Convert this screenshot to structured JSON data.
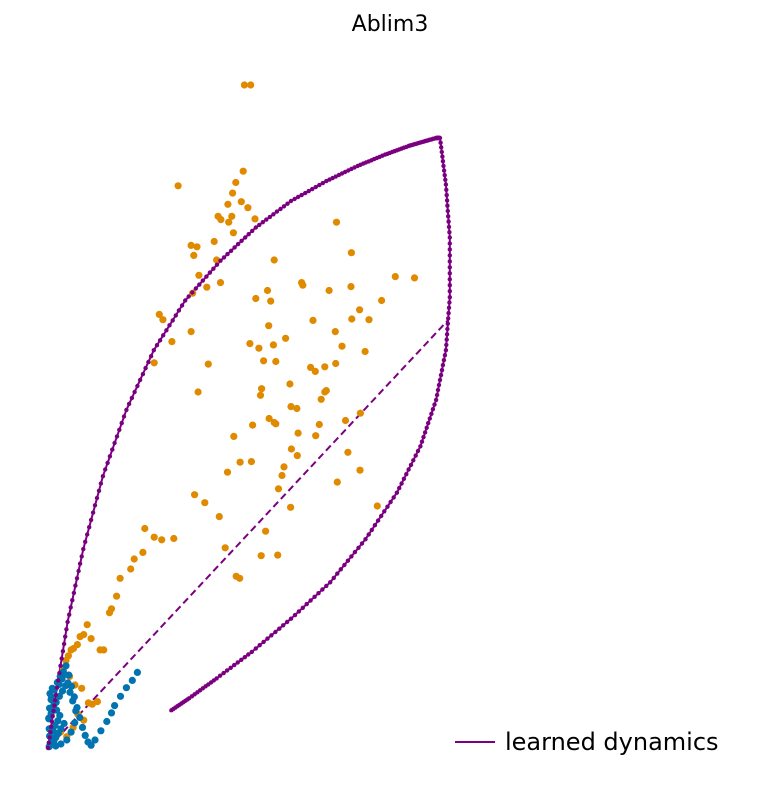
{
  "chart_data": {
    "type": "scatter",
    "title": "Ablim3",
    "xlabel": "",
    "ylabel": "",
    "axes_visible": false,
    "grid": false,
    "legend_position": "bottom-right",
    "xlim": [
      0,
      100
    ],
    "ylim": [
      0,
      100
    ],
    "colors": {
      "induction_cells": "#e08a00",
      "steady_cells": "#0073b0",
      "dynamics": "#7b0080"
    },
    "series": [
      {
        "points_x": [
          50.1,
          51.7,
          33.2,
          46.1,
          45.9,
          47.9,
          47.1,
          49.8,
          43.4,
          51.0,
          49.3,
          44.1,
          36.5,
          38.0,
          42.4,
          46.9,
          47.3,
          52.8,
          57.7,
          73.6,
          77.4,
          88.6,
          80.9,
          85.1,
          70.6,
          57.5,
          67.0,
          44.0,
          40.5,
          29.3,
          28.4,
          38.5,
          43.0,
          37.2,
          36.9,
          51.5,
          64.7,
          71.7,
          93.5,
          77.3,
          79.5,
          75.0,
          73.3,
          67.6,
          65.0,
          56.8,
          60.6,
          58.1,
          56.3,
          54.5,
          36.5,
          31.6,
          27.1,
          40.9,
          38.3,
          57.7,
          62.0,
          58.1,
          49.0,
          45.8,
          51.9,
          63.6,
          68.3,
          73.8,
          79.6,
          84.0,
          76.5,
          75.9,
          69.7,
          69.2,
          63.5,
          68.2,
          71.0,
          73.4,
          79.7,
          54.2,
          56.4,
          55.0,
          53.8,
          56.0,
          53.0,
          61.7,
          60.2,
          58.8,
          63.8,
          81.9,
          70.6,
          77.5,
          43.7,
          40.0,
          45.2,
          55.5,
          61.9,
          59.7,
          62.1,
          58.6,
          54.4,
          52.2,
          47.4,
          48.0,
          48.9,
          37.4,
          32.1,
          29.0,
          27.1,
          24.7,
          24.2,
          22.0,
          21.1,
          18.4,
          17.5,
          16.2,
          15.7,
          14.2,
          13.3,
          11.0,
          10.0,
          9.1,
          8.2,
          7.5,
          6.5,
          5.9,
          5.2,
          4.6,
          3.9,
          5.5,
          6.9,
          8.6,
          10.3,
          12.6,
          9.1,
          7.6,
          6.4,
          11.3,
          4.8,
          3.2
        ],
        "points_y": [
          100.0,
          100.0,
          84.8,
          79.3,
          82.0,
          85.3,
          83.7,
          87.0,
          80.2,
          81.5,
          82.4,
          79.7,
          75.8,
          75.6,
          76.4,
          80.2,
          77.7,
          79.8,
          73.6,
          79.3,
          74.7,
          71.1,
          59.8,
          67.5,
          57.5,
          60.8,
          57.4,
          70.2,
          69.5,
          64.6,
          65.4,
          71.3,
          73.6,
          74.3,
          68.6,
          61.0,
          70.2,
          69.0,
          70.9,
          69.6,
          66.1,
          60.6,
          62.8,
          64.5,
          69.8,
          67.4,
          61.8,
          58.3,
          63.7,
          54.2,
          62.8,
          61.3,
          58.1,
          57.9,
          53.7,
          49.1,
          51.5,
          48.9,
          43.1,
          41.6,
          43.2,
          44.1,
          47.1,
          40.1,
          41.9,
          36.5,
          44.6,
          49.4,
          52.6,
          48.8,
          51.2,
          56.8,
          53.9,
          58.0,
          50.5,
          53.2,
          49.7,
          58.4,
          60.3,
          69.0,
          67.8,
          54.9,
          42.4,
          39.1,
          47.5,
          64.6,
          53.7,
          64.7,
          34.9,
          37.0,
          30.2,
          32.7,
          36.3,
          41.1,
          45.1,
          29.1,
          29.0,
          48.7,
          47.0,
          25.9,
          25.6,
          38.2,
          31.6,
          31.4,
          31.8,
          33.1,
          29.5,
          28.5,
          27.0,
          25.6,
          22.9,
          21.0,
          20.4,
          14.8,
          14.8,
          16.5,
          18.6,
          17.1,
          16.8,
          15.6,
          15.0,
          14.8,
          13.9,
          13.2,
          11.8,
          10.8,
          9.5,
          9.0,
          6.8,
          7.0,
          4.2,
          5.1,
          3.1,
          6.6,
          1.7,
          2.4
        ]
      },
      {
        "points_x": [
          0.3,
          0.6,
          1.0,
          0.4,
          1.3,
          1.8,
          2.5,
          3.0,
          2.2,
          1.5,
          0.8,
          0.5,
          1.1,
          2.8,
          3.6,
          4.2,
          5.1,
          5.6,
          6.3,
          7.1,
          6.8,
          5.9,
          4.8,
          3.3,
          2.0,
          1.2,
          0.7,
          0.3,
          0.2,
          0.4,
          0.9,
          1.6,
          2.4,
          3.1,
          3.9,
          4.6,
          5.3,
          6.0,
          6.7,
          7.4,
          8.1,
          8.8,
          9.5,
          10.2,
          11.0,
          12.0,
          13.5,
          15.0,
          16.2,
          17.0,
          18.5,
          20.0,
          21.5,
          22.8,
          0.5,
          1.0,
          1.5,
          2.0,
          2.6,
          3.3,
          4.1,
          0.2,
          0.8,
          1.4,
          2.1,
          2.9,
          3.7,
          4.5
        ],
        "points_y": [
          0.2,
          0.5,
          1.0,
          1.8,
          2.6,
          3.4,
          4.1,
          4.9,
          5.7,
          6.5,
          7.3,
          8.2,
          9.0,
          9.6,
          10.4,
          11.1,
          9.8,
          8.4,
          7.1,
          5.6,
          3.8,
          2.4,
          1.2,
          0.6,
          0.3,
          0.9,
          1.7,
          2.9,
          4.5,
          6.0,
          7.6,
          8.8,
          9.9,
          10.8,
          11.5,
          12.4,
          11.0,
          9.3,
          7.7,
          6.1,
          4.6,
          3.1,
          1.9,
          0.9,
          0.4,
          1.2,
          2.6,
          4.0,
          5.3,
          6.4,
          7.8,
          9.1,
          10.2,
          11.4,
          0.4,
          0.7,
          1.1,
          1.6,
          2.2,
          2.9,
          3.7,
          4.4,
          5.2,
          6.0,
          6.9,
          7.8,
          8.6,
          9.4
        ]
      }
    ],
    "learned_dynamics": {
      "name": "learned dynamics",
      "upper_x": [
        0.0,
        2.0,
        5.0,
        9.0,
        14.0,
        20.0,
        27.0,
        35.0,
        44.0,
        53.0,
        62.0,
        71.0,
        79.0,
        86.0,
        92.0,
        96.0,
        99.0,
        100.0
      ],
      "upper_y": [
        0.0,
        8.0,
        19.0,
        30.0,
        41.0,
        51.0,
        60.0,
        67.5,
        73.5,
        78.5,
        82.5,
        85.5,
        87.8,
        89.5,
        90.8,
        91.5,
        92.0,
        92.0
      ],
      "lower_x": [
        100.0,
        101.5,
        102.5,
        102.5,
        101.5,
        99.0,
        95.0,
        89.0,
        81.0,
        72.0,
        62.0,
        52.0,
        43.0,
        36.0,
        31.0
      ],
      "lower_y": [
        92.0,
        85.0,
        77.0,
        68.0,
        60.0,
        52.5,
        45.5,
        38.5,
        31.5,
        25.0,
        19.5,
        14.5,
        10.5,
        7.5,
        5.5
      ],
      "dashed_x": [
        0.0,
        102.0
      ],
      "dashed_y": [
        0.0,
        64.5
      ]
    }
  }
}
